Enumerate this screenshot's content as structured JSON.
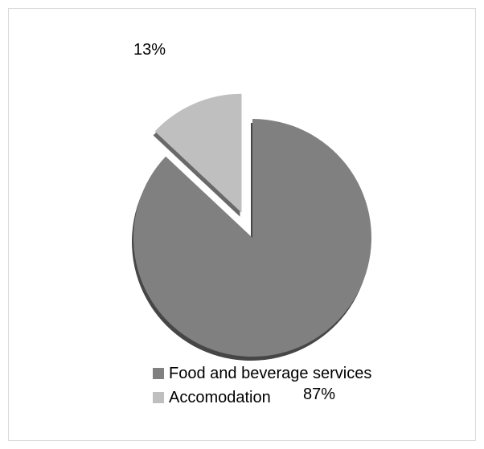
{
  "chart_data": {
    "type": "pie",
    "categories": [
      "Food and beverage services",
      "Accomodation"
    ],
    "values": [
      87,
      13
    ],
    "data_labels": [
      "87%",
      "13%"
    ],
    "colors": [
      "#808080",
      "#bfbfbf"
    ],
    "exploded": "Accomodation",
    "legend": "bottom"
  }
}
